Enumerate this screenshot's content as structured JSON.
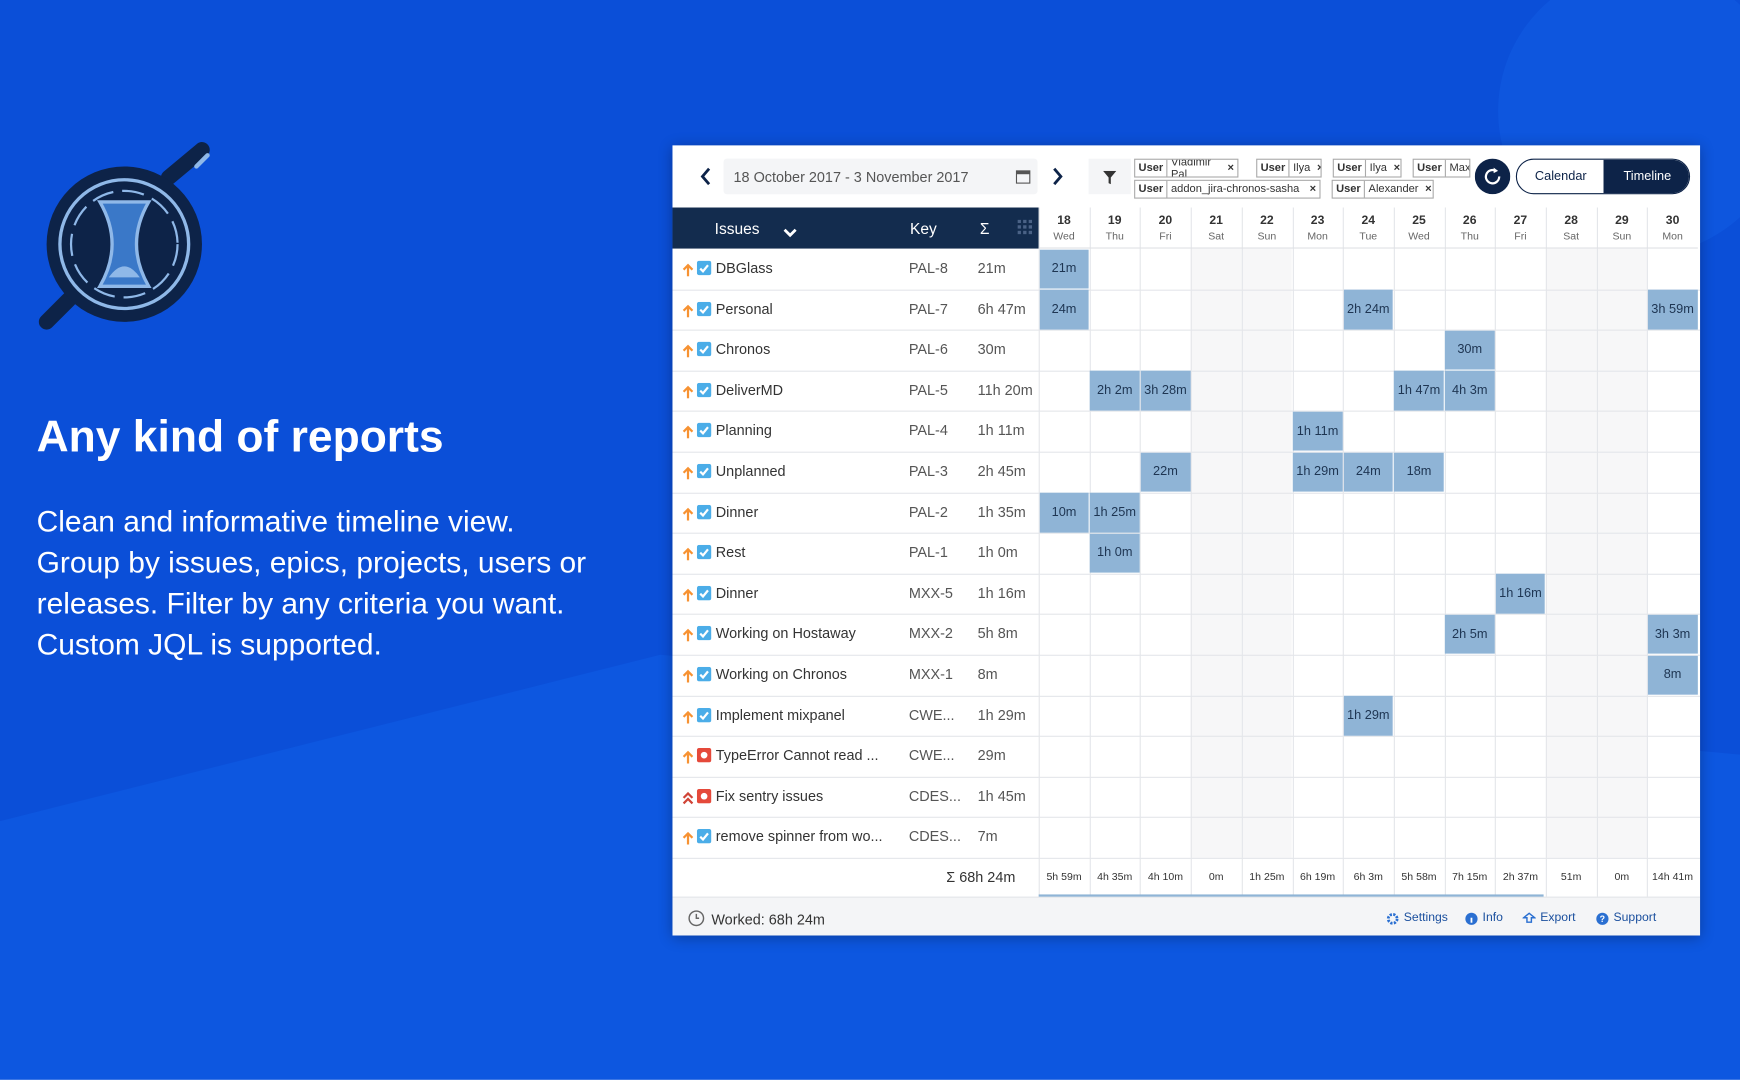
{
  "hero": {
    "title": "Any kind of reports",
    "lines": [
      "Clean and informative timeline view.",
      "Group by issues, epics, projects, users or",
      "releases. Filter by any criteria you want.",
      "Custom JQL is supported."
    ]
  },
  "toolbar": {
    "date_range": "18 October 2017 - 3 November 2017",
    "filters": [
      {
        "field": "User",
        "value": "Vladimir Pal"
      },
      {
        "field": "User",
        "value": "Ilya"
      },
      {
        "field": "User",
        "value": "Ilya"
      },
      {
        "field": "User",
        "value": "Max"
      },
      {
        "field": "User",
        "value": "addon_jira-chronos-sasha"
      },
      {
        "field": "User",
        "value": "Alexander"
      }
    ],
    "views": [
      "Calendar",
      "Timeline"
    ],
    "active_view": "Timeline"
  },
  "table": {
    "header": {
      "issues": "Issues",
      "key": "Key",
      "sum": "Σ"
    },
    "days": [
      {
        "day": "18",
        "weekday": "Wed"
      },
      {
        "day": "19",
        "weekday": "Thu"
      },
      {
        "day": "20",
        "weekday": "Fri"
      },
      {
        "day": "21",
        "weekday": "Sat",
        "weekend": true
      },
      {
        "day": "22",
        "weekday": "Sun",
        "weekend": true
      },
      {
        "day": "23",
        "weekday": "Mon"
      },
      {
        "day": "24",
        "weekday": "Tue"
      },
      {
        "day": "25",
        "weekday": "Wed"
      },
      {
        "day": "26",
        "weekday": "Thu"
      },
      {
        "day": "27",
        "weekday": "Fri"
      },
      {
        "day": "28",
        "weekday": "Sat",
        "weekend": true
      },
      {
        "day": "29",
        "weekday": "Sun",
        "weekend": true
      },
      {
        "day": "30",
        "weekday": "Mon"
      }
    ],
    "rows": [
      {
        "name": "DBGlass",
        "key": "PAL-8",
        "total": "21m",
        "type": "task",
        "priority": "medium",
        "cells": [
          "21m",
          null,
          null,
          null,
          null,
          null,
          null,
          null,
          null,
          null,
          null,
          null,
          null
        ]
      },
      {
        "name": "Personal",
        "key": "PAL-7",
        "total": "6h 47m",
        "type": "task",
        "priority": "medium",
        "cells": [
          "24m",
          null,
          null,
          null,
          null,
          null,
          "2h 24m",
          null,
          null,
          null,
          null,
          null,
          "3h 59m"
        ]
      },
      {
        "name": "Chronos",
        "key": "PAL-6",
        "total": "30m",
        "type": "task",
        "priority": "medium",
        "cells": [
          null,
          null,
          null,
          null,
          null,
          null,
          null,
          null,
          "30m",
          null,
          null,
          null,
          null
        ]
      },
      {
        "name": "DeliverMD",
        "key": "PAL-5",
        "total": "11h 20m",
        "type": "task",
        "priority": "medium",
        "cells": [
          null,
          "2h 2m",
          "3h 28m",
          null,
          null,
          null,
          null,
          "1h 47m",
          "4h 3m",
          null,
          null,
          null,
          null
        ]
      },
      {
        "name": "Planning",
        "key": "PAL-4",
        "total": "1h 11m",
        "type": "task",
        "priority": "medium",
        "cells": [
          null,
          null,
          null,
          null,
          null,
          "1h 11m",
          null,
          null,
          null,
          null,
          null,
          null,
          null
        ]
      },
      {
        "name": "Unplanned",
        "key": "PAL-3",
        "total": "2h 45m",
        "type": "task",
        "priority": "medium",
        "cells": [
          null,
          null,
          "22m",
          null,
          null,
          "1h 29m",
          "24m",
          "18m",
          null,
          null,
          null,
          null,
          null
        ]
      },
      {
        "name": "Dinner",
        "key": "PAL-2",
        "total": "1h 35m",
        "type": "task",
        "priority": "medium",
        "cells": [
          "10m",
          "1h 25m",
          null,
          null,
          null,
          null,
          null,
          null,
          null,
          null,
          null,
          null,
          null
        ]
      },
      {
        "name": "Rest",
        "key": "PAL-1",
        "total": "1h 0m",
        "type": "task",
        "priority": "medium",
        "cells": [
          null,
          "1h 0m",
          null,
          null,
          null,
          null,
          null,
          null,
          null,
          null,
          null,
          null,
          null
        ]
      },
      {
        "name": "Dinner",
        "key": "MXX-5",
        "total": "1h 16m",
        "type": "task",
        "priority": "medium",
        "cells": [
          null,
          null,
          null,
          null,
          null,
          null,
          null,
          null,
          null,
          "1h 16m",
          null,
          null,
          null
        ]
      },
      {
        "name": "Working on Hostaway",
        "key": "MXX-2",
        "total": "5h 8m",
        "type": "task",
        "priority": "medium",
        "cells": [
          null,
          null,
          null,
          null,
          null,
          null,
          null,
          null,
          "2h 5m",
          null,
          null,
          null,
          "3h 3m"
        ]
      },
      {
        "name": "Working on Chronos",
        "key": "MXX-1",
        "total": "8m",
        "type": "task",
        "priority": "medium",
        "cells": [
          null,
          null,
          null,
          null,
          null,
          null,
          null,
          null,
          null,
          null,
          null,
          null,
          "8m"
        ]
      },
      {
        "name": "Implement mixpanel",
        "key": "CWE...",
        "total": "1h 29m",
        "type": "task",
        "priority": "medium",
        "cells": [
          null,
          null,
          null,
          null,
          null,
          null,
          "1h 29m",
          null,
          null,
          null,
          null,
          null,
          null
        ]
      },
      {
        "name": "TypeError Cannot read ...",
        "key": "CWE...",
        "total": "29m",
        "type": "bug",
        "priority": "medium",
        "cells": [
          null,
          null,
          null,
          null,
          null,
          null,
          null,
          null,
          null,
          null,
          null,
          null,
          null
        ]
      },
      {
        "name": "Fix sentry issues",
        "key": "CDES...",
        "total": "1h 45m",
        "type": "bug",
        "priority": "highest",
        "cells": [
          null,
          null,
          null,
          null,
          null,
          null,
          null,
          null,
          null,
          null,
          null,
          null,
          null
        ]
      },
      {
        "name": "remove spinner from wo...",
        "key": "CDES...",
        "total": "7m",
        "type": "task",
        "priority": "medium",
        "cells": [
          null,
          null,
          null,
          null,
          null,
          null,
          null,
          null,
          null,
          null,
          null,
          null,
          null
        ]
      }
    ],
    "grand_total": "Σ 68h 24m",
    "day_totals": [
      "5h 59m",
      "4h 35m",
      "4h 10m",
      "0m",
      "1h 25m",
      "6h 19m",
      "6h 3m",
      "5h 58m",
      "7h 15m",
      "2h 37m",
      "51m",
      "0m",
      "14h 41m"
    ]
  },
  "footer": {
    "worked": "Worked: 68h 24m",
    "links": [
      "Settings",
      "Info",
      "Export",
      "Support"
    ]
  }
}
